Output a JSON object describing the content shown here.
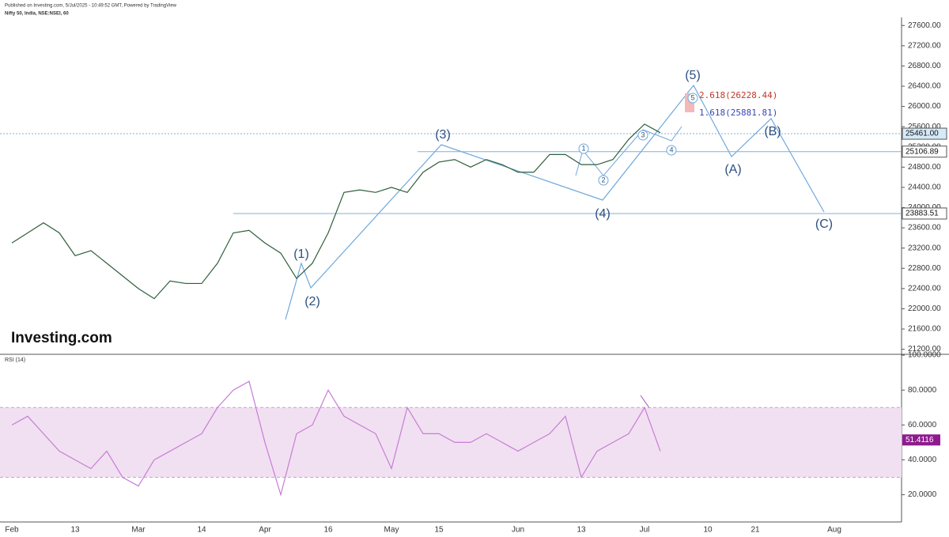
{
  "header": {
    "published": "Published on Investing.com, 5/Jul/2025 - 10:49:52 GMT, Powered by TradingView",
    "symbol": "Nifty 50, India, NSE:NSEI, 60",
    "logo": "Investing.com"
  },
  "chart_data": [
    {
      "type": "line",
      "color": "#2f5e3a",
      "values": [
        23300,
        23500,
        23700,
        23500,
        23050,
        23150,
        22900,
        22650,
        22400,
        22200,
        22550,
        22500,
        22500,
        22900,
        23500,
        23550,
        23300,
        23100,
        22600,
        22900,
        23500,
        24300,
        24350,
        24300,
        24400,
        24300,
        24700,
        24900,
        24950,
        24800,
        24950,
        24850,
        24700,
        24700,
        25050,
        25050,
        24850,
        24850,
        24950,
        25350,
        25650,
        25480,
        null,
        null,
        null,
        null,
        null,
        null,
        null,
        null,
        null,
        null,
        null,
        null,
        null,
        null,
        null
      ],
      "ylim": [
        21100,
        27760
      ],
      "yticks": [
        {
          "value": 21200,
          "label": "21200.00"
        },
        {
          "value": 21600,
          "label": "21600.00"
        },
        {
          "value": 22000,
          "label": "22000.00"
        },
        {
          "value": 22400,
          "label": "22400.00"
        },
        {
          "value": 22800,
          "label": "22800.00"
        },
        {
          "value": 23200,
          "label": "23200.00"
        },
        {
          "value": 23600,
          "label": "23600.00"
        },
        {
          "value": 24000,
          "label": "24000.00"
        },
        {
          "value": 24400,
          "label": "24400.00"
        },
        {
          "value": 24800,
          "label": "24800.00"
        },
        {
          "value": 25200,
          "label": "25200.00"
        },
        {
          "value": 25600,
          "label": "25600.00"
        },
        {
          "value": 26000,
          "label": "26000.00"
        },
        {
          "value": 26400,
          "label": "26400.00"
        },
        {
          "value": 26800,
          "label": "26800.00"
        },
        {
          "value": 27200,
          "label": "27200.00"
        },
        {
          "value": 27600,
          "label": "27600.00"
        }
      ],
      "levels": [
        {
          "value": 25461,
          "label": "25461.00"
        },
        {
          "value": 25106.89,
          "label": "25106.89"
        },
        {
          "value": 23883.51,
          "label": "23883.51"
        }
      ],
      "annotations": [
        "(1)",
        "(2)",
        "(3)",
        "(4)",
        "(5)",
        "(A)",
        "(B)",
        "(C)",
        "1",
        "2",
        "3",
        "4",
        "5",
        "2.618(26228.44)",
        "1.618(25881.81)"
      ]
    },
    {
      "type": "line",
      "title": "RSI (14)",
      "color": "#c77dd6",
      "categories": [
        "Feb",
        null,
        null,
        null,
        "13",
        null,
        null,
        null,
        "Mar",
        null,
        null,
        null,
        "14",
        null,
        null,
        null,
        "Apr",
        null,
        null,
        null,
        "16",
        null,
        null,
        null,
        "May",
        null,
        null,
        "15",
        null,
        null,
        null,
        null,
        "Jun",
        null,
        null,
        null,
        "13",
        null,
        null,
        null,
        "Jul",
        null,
        null,
        null,
        "10",
        null,
        null,
        "21",
        null,
        null,
        null,
        null,
        "Aug",
        null,
        null,
        null,
        null
      ],
      "values": [
        60,
        65,
        55,
        45,
        40,
        35,
        45,
        30,
        25,
        40,
        45,
        50,
        55,
        70,
        80,
        85,
        50,
        20,
        55,
        60,
        80,
        65,
        60,
        55,
        35,
        70,
        55,
        55,
        50,
        50,
        55,
        50,
        45,
        50,
        55,
        65,
        30,
        45,
        50,
        55,
        70,
        45,
        null,
        null,
        null,
        null,
        null,
        null,
        null,
        null,
        null,
        null,
        null,
        null,
        null,
        null,
        null
      ],
      "ylim": [
        4.4,
        100.5
      ],
      "yticks": [
        {
          "value": 20,
          "label": "20.0000"
        },
        {
          "value": 40,
          "label": "40.0000"
        },
        {
          "value": 60,
          "label": "60.0000"
        },
        {
          "value": 80,
          "label": "80.0000"
        },
        {
          "value": 100,
          "label": "100.0000"
        }
      ],
      "bands": [
        30,
        70
      ],
      "last_value": 51.4116
    }
  ]
}
